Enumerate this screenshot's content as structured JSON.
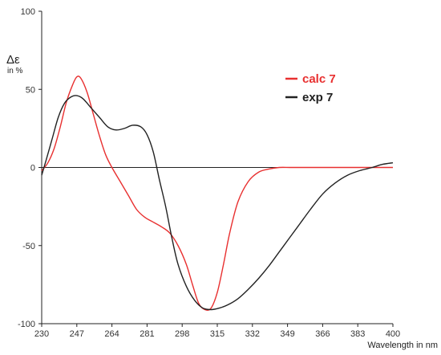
{
  "chart_data": {
    "type": "line",
    "title": "",
    "xlabel": "Wavelength in nm",
    "ylabel": "Δε",
    "ylabel_unit": "in %",
    "xlim": [
      230,
      400
    ],
    "ylim": [
      -100,
      100
    ],
    "x_ticks": [
      230,
      247,
      264,
      281,
      298,
      315,
      332,
      349,
      366,
      383,
      400
    ],
    "y_ticks": [
      100,
      50,
      0,
      -50,
      -100
    ],
    "grid": false,
    "legend_position": "top-right",
    "series": [
      {
        "name": "calc 7",
        "color": "#e83030",
        "x": [
          230,
          233,
          236,
          239,
          242,
          245,
          247,
          249,
          252,
          255,
          258,
          261,
          264,
          268,
          272,
          276,
          280,
          284,
          288,
          292,
          296,
          300,
          303,
          306,
          309,
          312,
          315,
          318,
          321,
          325,
          330,
          335,
          340,
          345,
          350,
          355,
          360,
          370,
          380,
          390,
          400
        ],
        "y": [
          -2,
          3,
          12,
          26,
          42,
          53,
          58,
          57,
          48,
          34,
          20,
          8,
          0,
          -9,
          -18,
          -27,
          -32,
          -35,
          -38,
          -42,
          -50,
          -62,
          -75,
          -87,
          -91,
          -90,
          -80,
          -62,
          -42,
          -22,
          -9,
          -3,
          -1,
          0,
          0,
          0,
          0,
          0,
          0,
          0,
          0
        ]
      },
      {
        "name": "exp 7",
        "color": "#222222",
        "x": [
          230,
          232,
          235,
          238,
          241,
          244,
          247,
          250,
          254,
          258,
          262,
          266,
          270,
          274,
          278,
          281,
          284,
          287,
          290,
          293,
          296,
          300,
          304,
          308,
          312,
          316,
          320,
          325,
          330,
          335,
          340,
          345,
          350,
          355,
          360,
          366,
          372,
          378,
          384,
          390,
          395,
          400
        ],
        "y": [
          -5,
          4,
          18,
          32,
          41,
          45,
          46,
          44,
          38,
          32,
          26,
          24,
          25,
          27,
          26,
          21,
          10,
          -8,
          -25,
          -45,
          -62,
          -76,
          -85,
          -90,
          -91,
          -90,
          -88,
          -84,
          -78,
          -71,
          -63,
          -54,
          -45,
          -36,
          -27,
          -17,
          -10,
          -5,
          -2,
          0,
          2,
          3
        ]
      }
    ]
  }
}
